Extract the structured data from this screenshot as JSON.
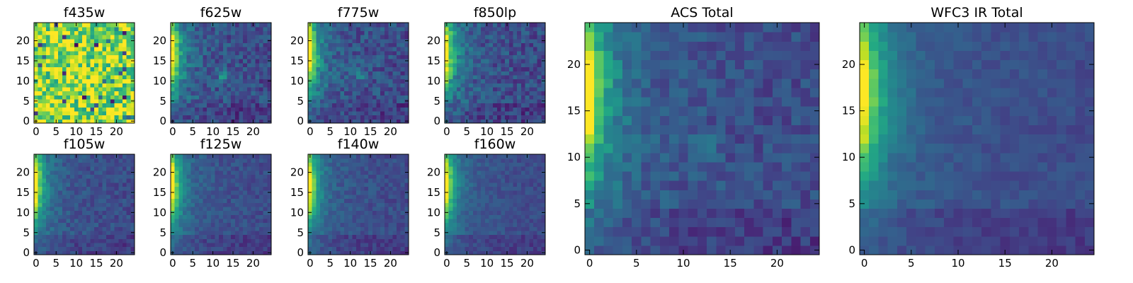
{
  "figure": {
    "background": "#ffffff",
    "colormap": "viridis",
    "colormap_stops": [
      "#440154",
      "#3b528b",
      "#21918c",
      "#5ec962",
      "#fde725"
    ]
  },
  "chart_data": [
    {
      "type": "heatmap",
      "title": "f435w",
      "x_ticks": [
        "0",
        "5",
        "10",
        "15",
        "20"
      ],
      "y_ticks": [
        "0",
        "5",
        "10",
        "15",
        "20"
      ],
      "xlim": [
        0,
        24
      ],
      "ylim": [
        0,
        24
      ],
      "grid_size": 25,
      "pattern": "noisy-high-background",
      "noise": 0.28,
      "level_note_0to1": 0.85
    },
    {
      "type": "heatmap",
      "title": "f625w",
      "x_ticks": [
        "0",
        "5",
        "10",
        "15",
        "20"
      ],
      "y_ticks": [
        "0",
        "5",
        "10",
        "15",
        "20"
      ],
      "xlim": [
        0,
        24
      ],
      "ylim": [
        0,
        24
      ],
      "grid_size": 25,
      "pattern": "left-edge-gradient-with-central-source",
      "noise": 0.12
    },
    {
      "type": "heatmap",
      "title": "f775w",
      "x_ticks": [
        "0",
        "5",
        "10",
        "15",
        "20"
      ],
      "y_ticks": [
        "0",
        "5",
        "10",
        "15",
        "20"
      ],
      "xlim": [
        0,
        24
      ],
      "ylim": [
        0,
        24
      ],
      "grid_size": 25,
      "pattern": "left-edge-gradient-with-central-source",
      "noise": 0.12
    },
    {
      "type": "heatmap",
      "title": "f850lp",
      "x_ticks": [
        "0",
        "5",
        "10",
        "15",
        "20"
      ],
      "y_ticks": [
        "0",
        "5",
        "10",
        "15",
        "20"
      ],
      "xlim": [
        0,
        24
      ],
      "ylim": [
        0,
        24
      ],
      "grid_size": 25,
      "pattern": "left-edge-gradient",
      "noise": 0.12
    },
    {
      "type": "heatmap",
      "title": "f105w",
      "x_ticks": [
        "0",
        "5",
        "10",
        "15",
        "20"
      ],
      "y_ticks": [
        "0",
        "5",
        "10",
        "15",
        "20"
      ],
      "xlim": [
        0,
        24
      ],
      "ylim": [
        0,
        24
      ],
      "grid_size": 25,
      "pattern": "left-edge-gradient",
      "noise": 0.08
    },
    {
      "type": "heatmap",
      "title": "f125w",
      "x_ticks": [
        "0",
        "5",
        "10",
        "15",
        "20"
      ],
      "y_ticks": [
        "0",
        "5",
        "10",
        "15",
        "20"
      ],
      "xlim": [
        0,
        24
      ],
      "ylim": [
        0,
        24
      ],
      "grid_size": 25,
      "pattern": "left-edge-gradient",
      "noise": 0.07
    },
    {
      "type": "heatmap",
      "title": "f140w",
      "x_ticks": [
        "0",
        "5",
        "10",
        "15",
        "20"
      ],
      "y_ticks": [
        "0",
        "5",
        "10",
        "15",
        "20"
      ],
      "xlim": [
        0,
        24
      ],
      "ylim": [
        0,
        24
      ],
      "grid_size": 25,
      "pattern": "left-edge-gradient",
      "noise": 0.07
    },
    {
      "type": "heatmap",
      "title": "f160w",
      "x_ticks": [
        "0",
        "5",
        "10",
        "15",
        "20"
      ],
      "y_ticks": [
        "0",
        "5",
        "10",
        "15",
        "20"
      ],
      "xlim": [
        0,
        24
      ],
      "ylim": [
        0,
        24
      ],
      "grid_size": 25,
      "pattern": "left-edge-gradient",
      "noise": 0.06
    },
    {
      "type": "heatmap",
      "title": "ACS Total",
      "x_ticks": [
        "0",
        "5",
        "10",
        "15",
        "20"
      ],
      "y_ticks": [
        "0",
        "5",
        "10",
        "15",
        "20"
      ],
      "xlim": [
        0,
        24
      ],
      "ylim": [
        0,
        24
      ],
      "grid_size": 25,
      "pattern": "left-edge-gradient-with-central-source",
      "noise": 0.09
    },
    {
      "type": "heatmap",
      "title": "WFC3 IR Total",
      "x_ticks": [
        "0",
        "5",
        "10",
        "15",
        "20"
      ],
      "y_ticks": [
        "0",
        "5",
        "10",
        "15",
        "20"
      ],
      "xlim": [
        0,
        24
      ],
      "ylim": [
        0,
        24
      ],
      "grid_size": 25,
      "pattern": "left-edge-gradient",
      "noise": 0.05
    }
  ]
}
